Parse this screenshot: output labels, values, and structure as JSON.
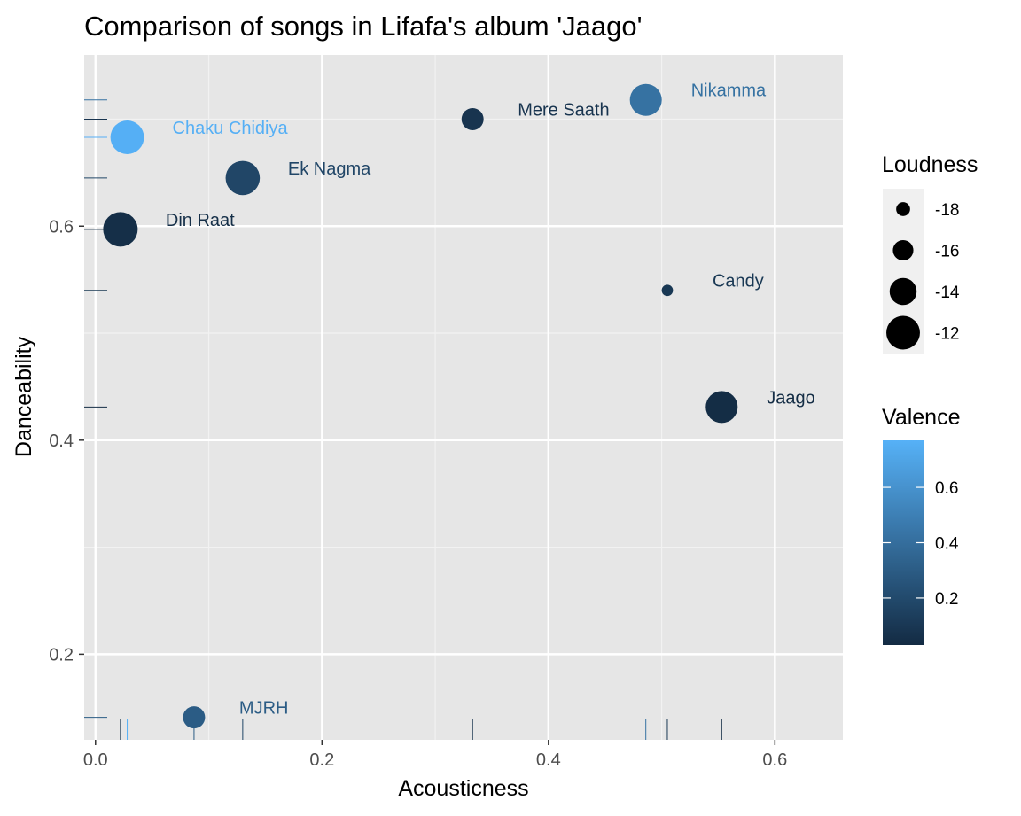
{
  "chart_data": {
    "type": "scatter",
    "title": "Comparison of songs in Lifafa's album 'Jaago'",
    "xlabel": "Acousticness",
    "ylabel": "Danceability",
    "xlim": [
      -0.01,
      0.66
    ],
    "ylim": [
      0.12,
      0.76
    ],
    "x_ticks": [
      {
        "value": 0.0,
        "label": "0.0"
      },
      {
        "value": 0.2,
        "label": "0.2"
      },
      {
        "value": 0.4,
        "label": "0.4"
      },
      {
        "value": 0.6,
        "label": "0.6"
      }
    ],
    "y_ticks": [
      {
        "value": 0.2,
        "label": "0.2"
      },
      {
        "value": 0.4,
        "label": "0.4"
      },
      {
        "value": 0.6,
        "label": "0.6"
      }
    ],
    "grid": true,
    "rug": true,
    "points": [
      {
        "label": "Chaku Chidiya",
        "acousticness": 0.028,
        "danceability": 0.683,
        "loudness": -12.0,
        "valence": 0.76
      },
      {
        "label": "Din Raat",
        "acousticness": 0.022,
        "danceability": 0.597,
        "loudness": -11.7,
        "valence": 0.05
      },
      {
        "label": "Ek Nagma",
        "acousticness": 0.13,
        "danceability": 0.645,
        "loudness": -11.8,
        "valence": 0.18
      },
      {
        "label": "Mere Saath",
        "acousticness": 0.333,
        "danceability": 0.7,
        "loudness": -15.5,
        "valence": 0.08
      },
      {
        "label": "Nikamma",
        "acousticness": 0.486,
        "danceability": 0.718,
        "loudness": -12.5,
        "valence": 0.42
      },
      {
        "label": "Candy",
        "acousticness": 0.505,
        "danceability": 0.54,
        "loudness": -18.8,
        "valence": 0.1
      },
      {
        "label": "Jaago",
        "acousticness": 0.553,
        "danceability": 0.431,
        "loudness": -12.5,
        "valence": 0.04
      },
      {
        "label": "MJRH",
        "acousticness": 0.087,
        "danceability": 0.141,
        "loudness": -15.5,
        "valence": 0.3
      }
    ],
    "size_legend": {
      "title": "Loudness",
      "entries": [
        {
          "value": -18,
          "label": "-18"
        },
        {
          "value": -16,
          "label": "-16"
        },
        {
          "value": -14,
          "label": "-14"
        },
        {
          "value": -12,
          "label": "-12"
        }
      ]
    },
    "color_legend": {
      "title": "Valence",
      "range": [
        0.03,
        0.77
      ],
      "low_color": "#132b43",
      "high_color": "#56b1f7",
      "ticks": [
        {
          "value": 0.2,
          "label": "0.2"
        },
        {
          "value": 0.4,
          "label": "0.4"
        },
        {
          "value": 0.6,
          "label": "0.6"
        }
      ]
    },
    "colors": {
      "panel_background": "#e6e6e6",
      "grid_major": "#ffffff",
      "grid_minor": "#f2f2f2",
      "legend_key_background": "#f0f0f0"
    }
  }
}
